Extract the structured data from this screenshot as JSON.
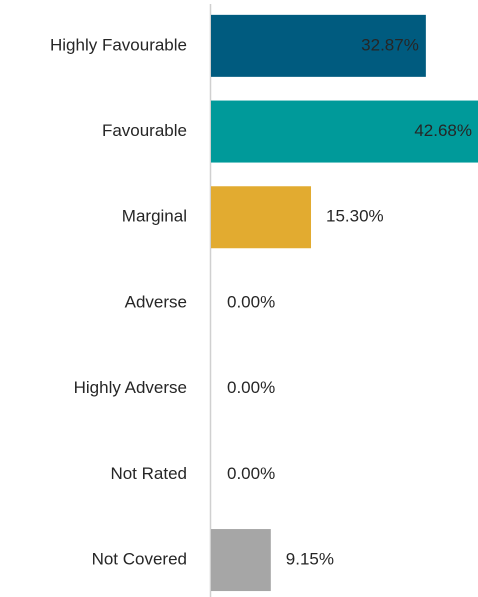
{
  "chart_data": {
    "type": "bar",
    "orientation": "horizontal",
    "categories": [
      "Highly Favourable",
      "Favourable",
      "Marginal",
      "Adverse",
      "Highly Adverse",
      "Not Rated",
      "Not Covered"
    ],
    "values": [
      32.87,
      42.68,
      15.3,
      0.0,
      0.0,
      0.0,
      9.15
    ],
    "value_labels": [
      "32.87%",
      "42.68%",
      "15.30%",
      "0.00%",
      "0.00%",
      "0.00%",
      "9.15%"
    ],
    "colors": [
      "#005b7f",
      "#009a9a",
      "#e2ab30",
      "#7f7f7f",
      "#7f7f7f",
      "#7f7f7f",
      "#a6a6a6"
    ],
    "xlim": [
      0,
      41
    ]
  }
}
